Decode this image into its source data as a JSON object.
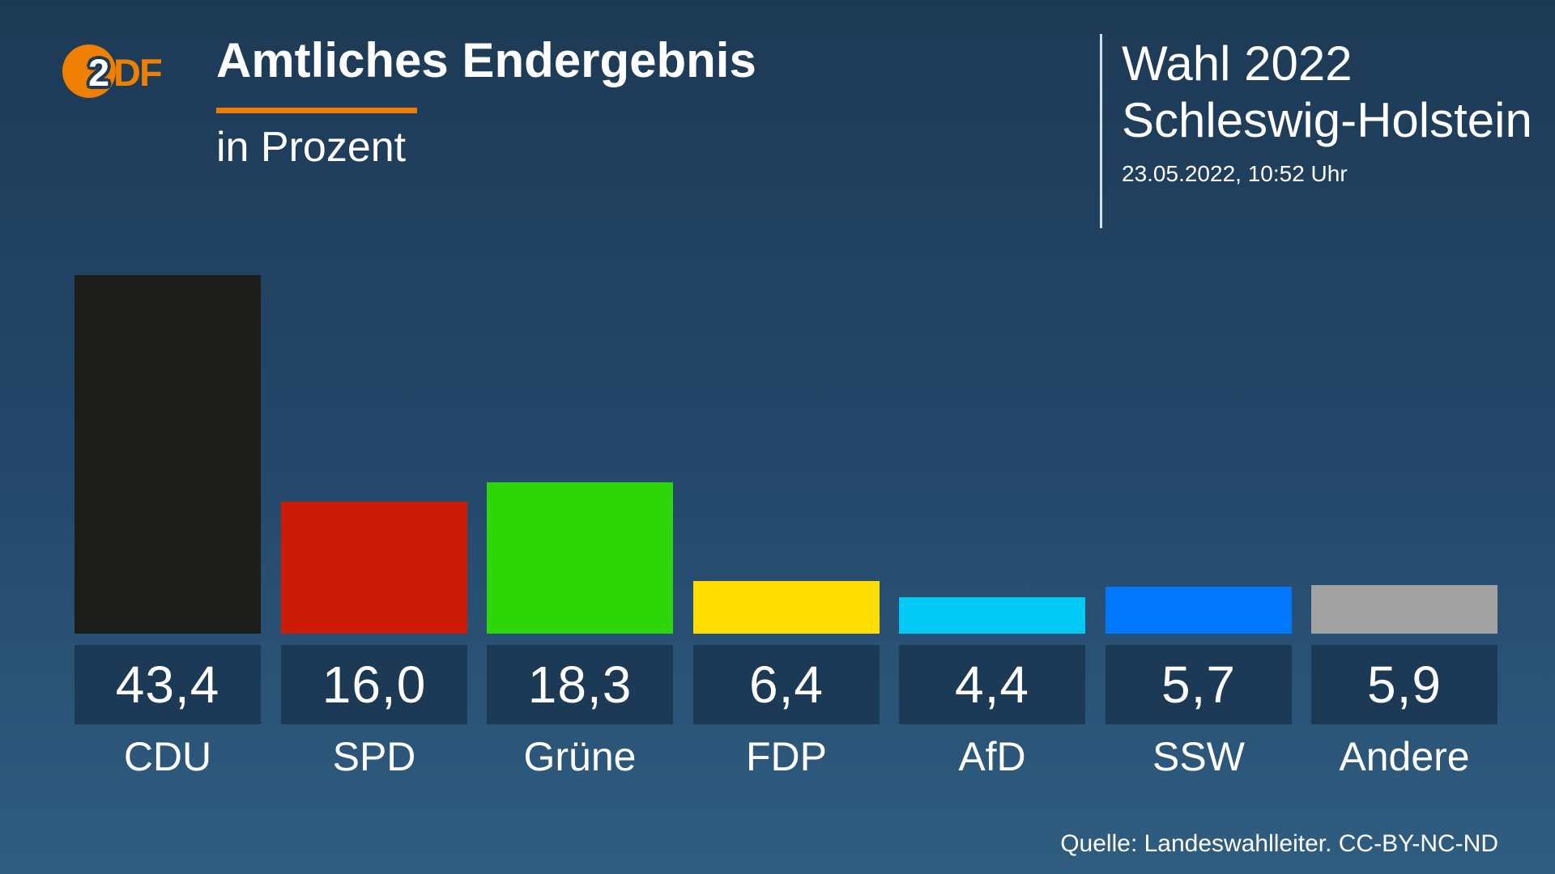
{
  "header": {
    "logo": {
      "name": "ZDF",
      "glyph_2": "2",
      "glyph_df": "DF"
    },
    "title": "Amtliches Endergebnis",
    "subtitle": "in Prozent",
    "election": {
      "line1": "Wahl 2022",
      "line2": "Schleswig-Holstein",
      "timestamp": "23.05.2022, 10:52 Uhr"
    }
  },
  "footer": {
    "source": "Quelle: Landeswahlleiter. CC-BY-NC-ND"
  },
  "colors": {
    "background_top": "#1d3a55",
    "background_bottom": "#2f5d80",
    "accent_orange": "#ef7d00",
    "value_box": "#1c3a55",
    "text": "#ffffff"
  },
  "chart_data": {
    "type": "bar",
    "title": "Amtliches Endergebnis",
    "subtitle": "in Prozent",
    "unit": "percent",
    "categories": [
      "CDU",
      "SPD",
      "Grüne",
      "FDP",
      "AfD",
      "SSW",
      "Andere"
    ],
    "values": [
      43.4,
      16.0,
      18.3,
      6.4,
      4.4,
      5.7,
      5.9
    ],
    "value_labels": [
      "43,4",
      "16,0",
      "18,3",
      "6,4",
      "4,4",
      "5,7",
      "5,9"
    ],
    "bar_colors": [
      "#1d1d1b",
      "#cc1c08",
      "#2ed608",
      "#ffdd00",
      "#00caf3",
      "#0077fc",
      "#a2a2a2"
    ],
    "slugs": [
      "cdu",
      "spd",
      "gruene",
      "fdp",
      "afd",
      "ssw",
      "andere"
    ],
    "xlabel": "",
    "ylabel": "",
    "grid": false,
    "legend": false,
    "value_label_position": "below-bar-in-box"
  }
}
